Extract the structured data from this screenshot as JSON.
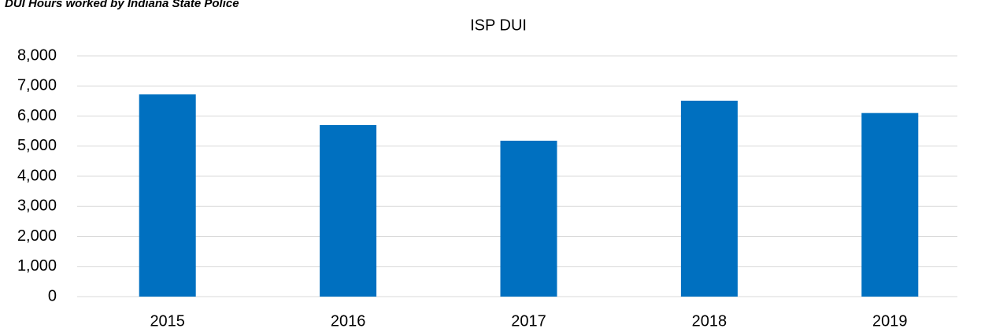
{
  "chart_data": {
    "type": "bar",
    "subtitle": "DUI Hours worked by Indiana State Police",
    "title": "ISP DUI",
    "categories": [
      "2015",
      "2016",
      "2017",
      "2018",
      "2019"
    ],
    "values": [
      6720,
      5700,
      5180,
      6510,
      6100
    ],
    "color": "#0070c0",
    "ylim": [
      0,
      8000
    ],
    "yticks": [
      0,
      {
        "value": 1000,
        "label": "1,000"
      },
      {
        "value": 2000,
        "label": "2,000"
      },
      {
        "value": 3000,
        "label": "3,000"
      },
      {
        "value": 4000,
        "label": "4,000"
      },
      {
        "value": 5000,
        "label": "5,000"
      },
      {
        "value": 6000,
        "label": "6,000"
      },
      {
        "value": 7000,
        "label": "7,000"
      },
      {
        "value": 8000,
        "label": "8,000"
      }
    ],
    "grid": true
  }
}
